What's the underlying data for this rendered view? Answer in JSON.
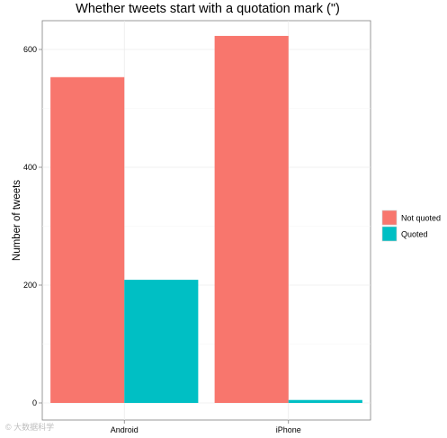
{
  "chart_data": {
    "type": "bar",
    "title": "Whether tweets start with a quotation mark (\")",
    "xlabel": "",
    "ylabel": "Number of tweets",
    "categories": [
      "Android",
      "iPhone"
    ],
    "series": [
      {
        "name": "Not quoted",
        "values": [
          553,
          623
        ],
        "color": "#F8766D"
      },
      {
        "name": "Quoted",
        "values": [
          209,
          5
        ],
        "color": "#00BFC4"
      }
    ],
    "ylim": [
      0,
      650
    ],
    "yticks": [
      0,
      200,
      400,
      600
    ],
    "grid": true,
    "legend": "right"
  },
  "watermark": "© 大数据科学"
}
